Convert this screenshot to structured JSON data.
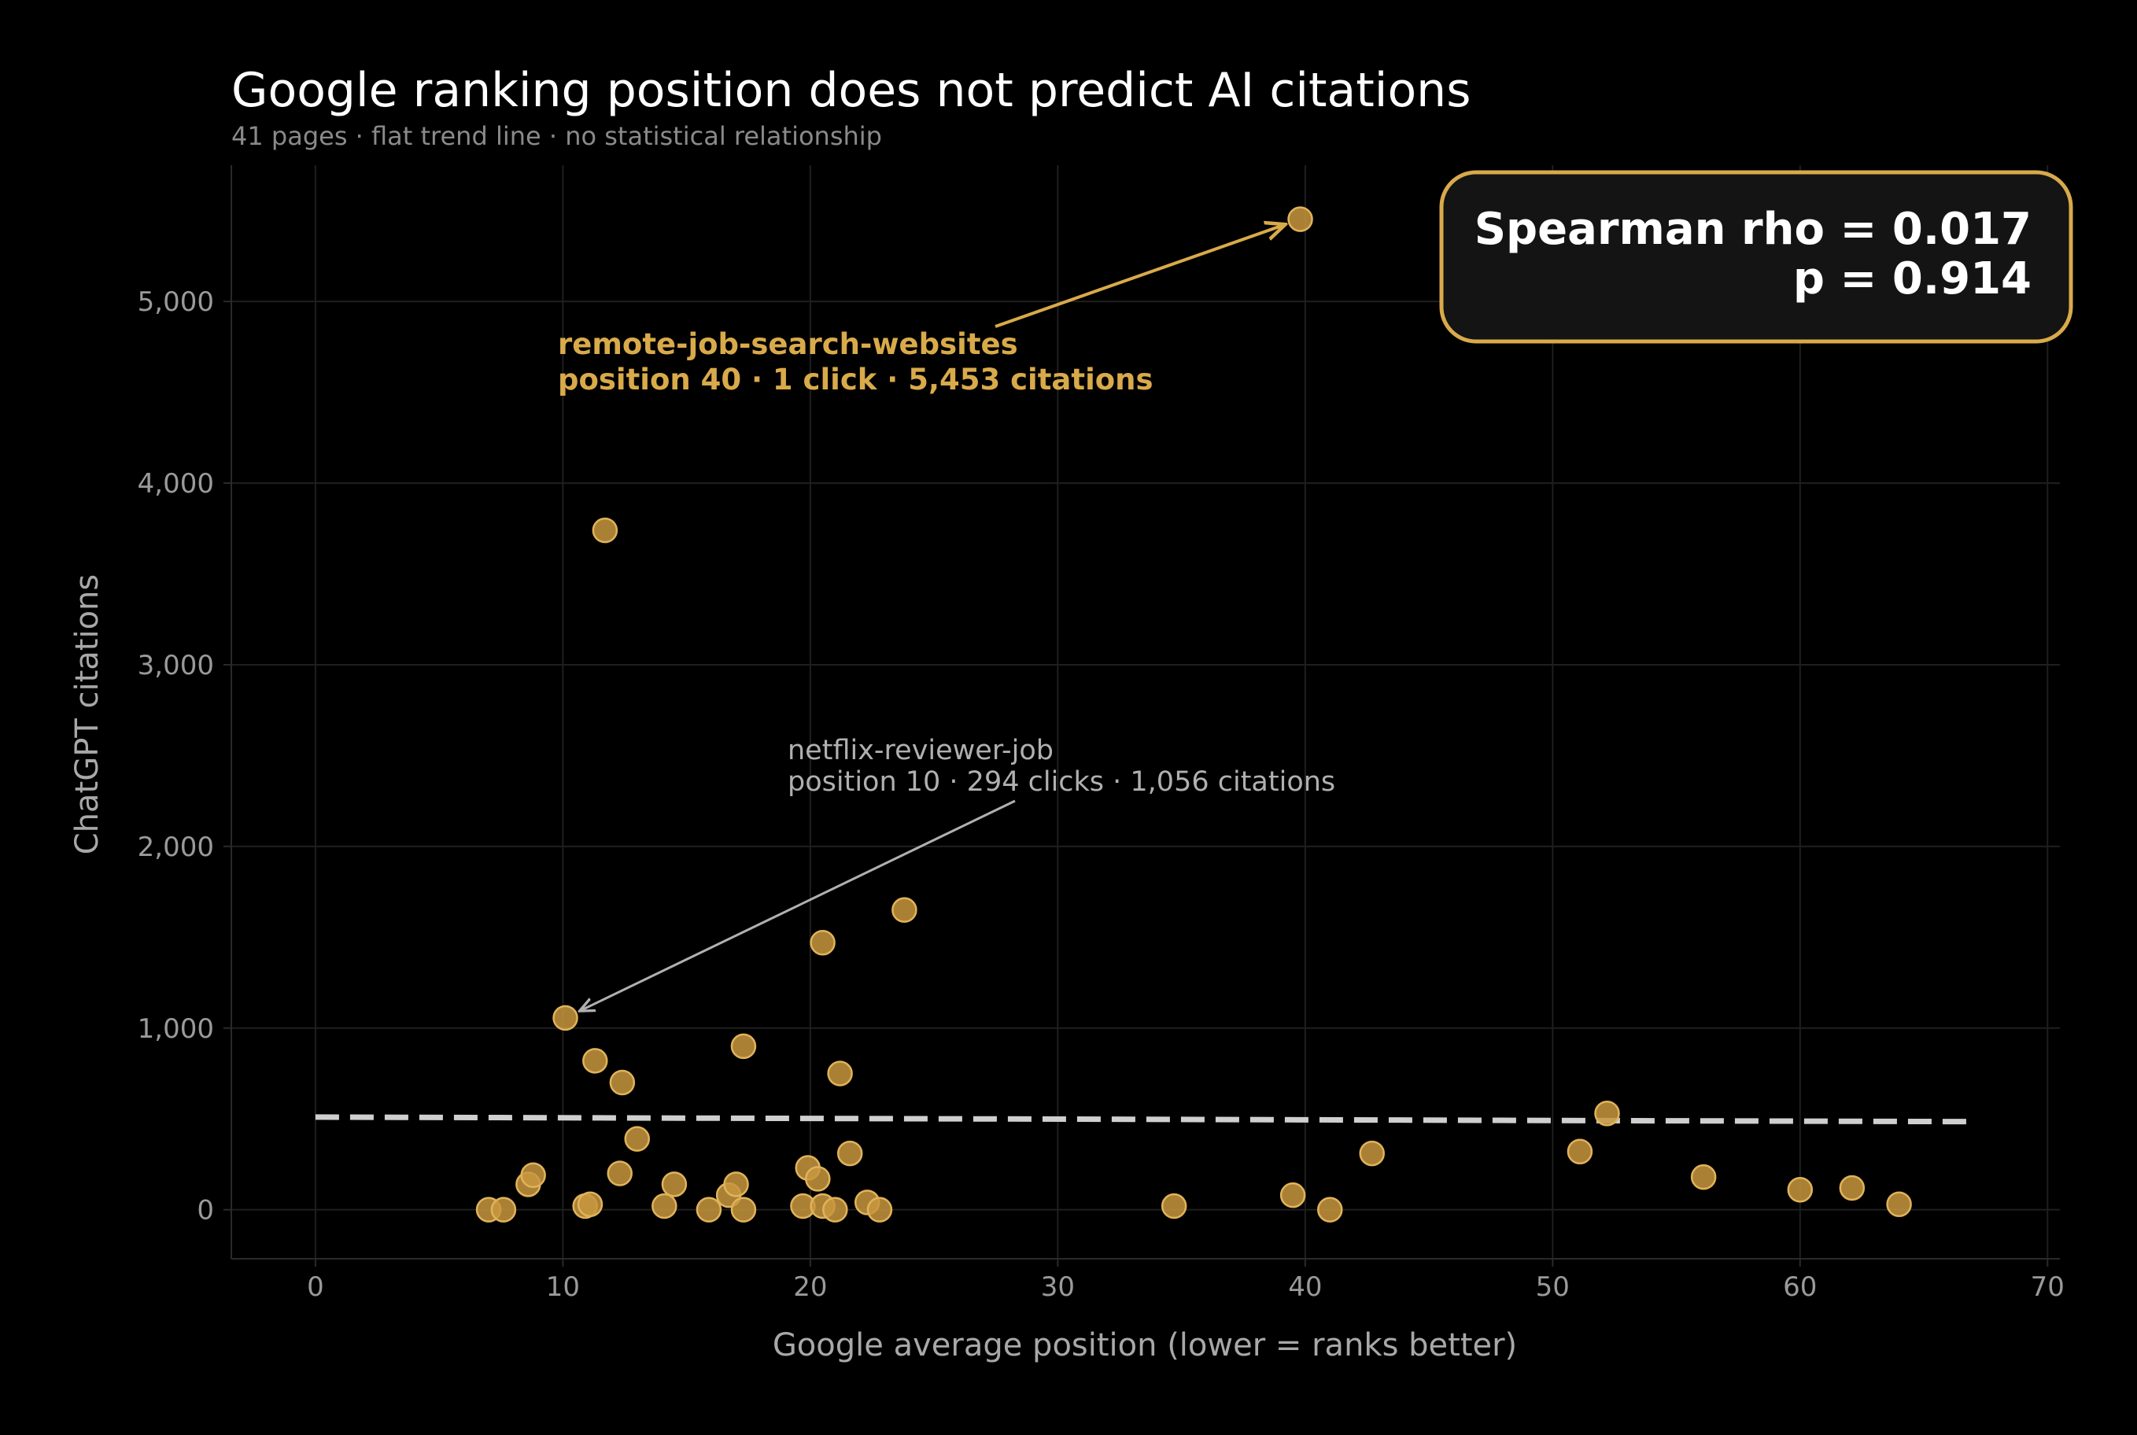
{
  "chart_data": {
    "type": "scatter",
    "title": "Google ranking position does not predict AI citations",
    "subtitle": "41 pages  ·  flat trend line  ·  no statistical relationship",
    "xlabel": "Google average position  (lower = ranks better)",
    "ylabel": "ChatGPT citations",
    "xlim": [
      -3.4,
      70.5
    ],
    "ylim": [
      -270,
      5750
    ],
    "xticks": [
      0,
      10,
      20,
      30,
      40,
      50,
      60,
      70
    ],
    "xtick_labels": [
      "0",
      "10",
      "20",
      "30",
      "40",
      "50",
      "60",
      "70"
    ],
    "yticks": [
      0,
      1000,
      2000,
      3000,
      4000,
      5000
    ],
    "ytick_labels": [
      "0",
      "1,000",
      "2,000",
      "3,000",
      "4,000",
      "5,000"
    ],
    "grid": true,
    "points": [
      {
        "x": 7.0,
        "y": 0
      },
      {
        "x": 7.6,
        "y": 0
      },
      {
        "x": 8.6,
        "y": 140
      },
      {
        "x": 8.8,
        "y": 190
      },
      {
        "x": 10.1,
        "y": 1056
      },
      {
        "x": 10.9,
        "y": 20
      },
      {
        "x": 11.1,
        "y": 30
      },
      {
        "x": 11.3,
        "y": 820
      },
      {
        "x": 11.7,
        "y": 3740
      },
      {
        "x": 12.3,
        "y": 200
      },
      {
        "x": 12.4,
        "y": 700
      },
      {
        "x": 13.0,
        "y": 390
      },
      {
        "x": 14.1,
        "y": 20
      },
      {
        "x": 14.5,
        "y": 140
      },
      {
        "x": 15.9,
        "y": 0
      },
      {
        "x": 16.7,
        "y": 80
      },
      {
        "x": 17.0,
        "y": 140
      },
      {
        "x": 17.3,
        "y": 0
      },
      {
        "x": 17.3,
        "y": 900
      },
      {
        "x": 19.7,
        "y": 20
      },
      {
        "x": 19.9,
        "y": 230
      },
      {
        "x": 20.3,
        "y": 170
      },
      {
        "x": 20.5,
        "y": 1470
      },
      {
        "x": 20.5,
        "y": 20
      },
      {
        "x": 21.2,
        "y": 750
      },
      {
        "x": 21.6,
        "y": 310
      },
      {
        "x": 22.3,
        "y": 40
      },
      {
        "x": 22.8,
        "y": 0
      },
      {
        "x": 23.8,
        "y": 1650
      },
      {
        "x": 34.7,
        "y": 20
      },
      {
        "x": 39.5,
        "y": 80
      },
      {
        "x": 39.8,
        "y": 5453
      },
      {
        "x": 41.0,
        "y": 0
      },
      {
        "x": 42.7,
        "y": 310
      },
      {
        "x": 51.1,
        "y": 320
      },
      {
        "x": 52.2,
        "y": 530
      },
      {
        "x": 56.1,
        "y": 180
      },
      {
        "x": 60.0,
        "y": 110
      },
      {
        "x": 62.1,
        "y": 120
      },
      {
        "x": 64.0,
        "y": 30
      },
      {
        "x": 21.0,
        "y": 0
      }
    ],
    "trend_line": {
      "x": [
        0,
        67
      ],
      "y": [
        510,
        485
      ]
    },
    "annotations": [
      {
        "line1": "remote-job-search-websites",
        "line2": "position 40  ·  1 click  ·  5,453 citations",
        "target": {
          "x": 39.8,
          "y": 5453
        },
        "style": "highlight"
      },
      {
        "line1": "netflix-reviewer-job",
        "line2": "position 10  ·  294 clicks  ·  1,056 citations",
        "target": {
          "x": 10.1,
          "y": 1056
        },
        "style": "muted"
      }
    ],
    "stats_box": {
      "line1": "Spearman rho = 0.017",
      "line2": "p = 0.914"
    },
    "colors": {
      "background": "#000000",
      "point_fill": "#c8963e",
      "point_stroke": "#e0b35a",
      "trend": "#cfcfcf",
      "highlight": "#d9aa4a",
      "muted": "#b0b0b0",
      "stats_box_fill": "#141414",
      "stats_box_border": "#d9aa4a",
      "grid": "#1f1f1f",
      "axis": "#2a2a2a"
    }
  }
}
